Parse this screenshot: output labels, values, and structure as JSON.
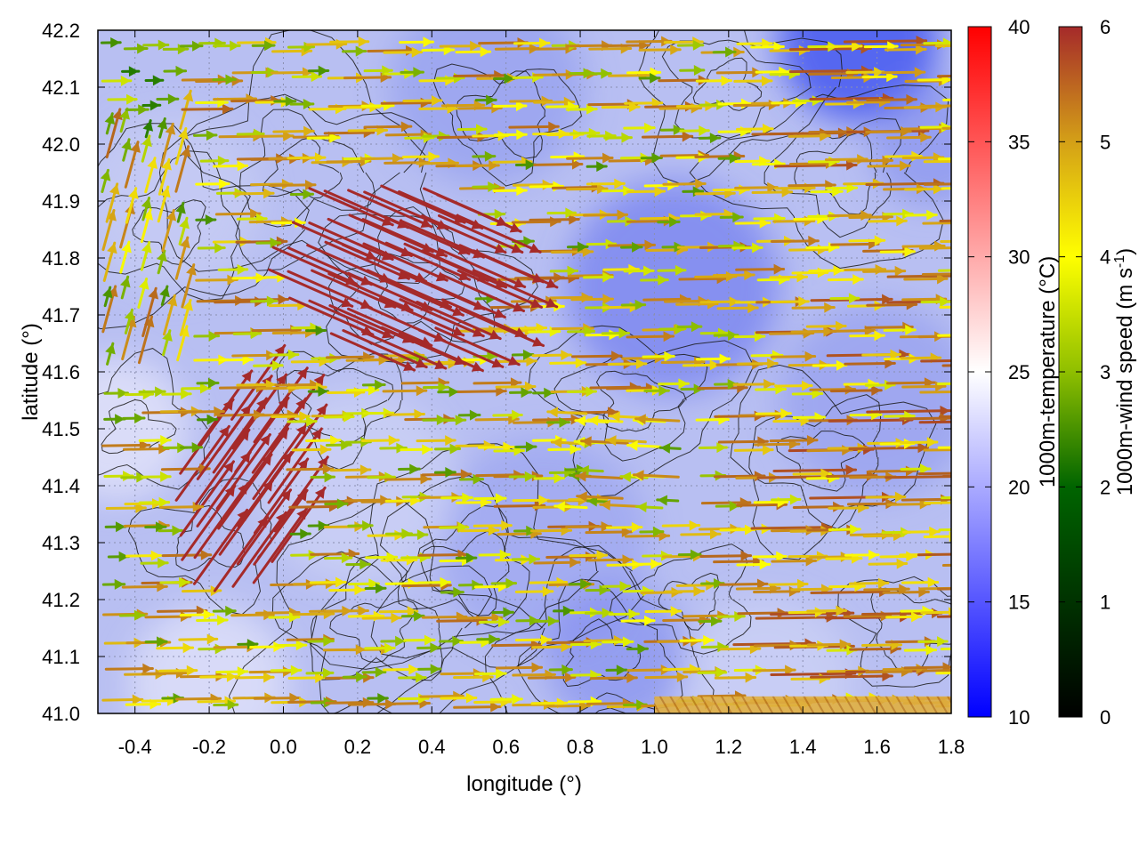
{
  "chart_data": {
    "type": "heatmap",
    "description_overlays": [
      "contour",
      "vector-field"
    ],
    "xlabel": "longitude (°)",
    "ylabel": "latitude (°)",
    "xlim": [
      -0.5,
      1.8
    ],
    "ylim": [
      41.0,
      42.2
    ],
    "x_ticks": [
      -0.4,
      -0.2,
      0.0,
      0.2,
      0.4,
      0.6,
      0.8,
      1.0,
      1.2,
      1.4,
      1.6,
      1.8
    ],
    "x_tick_labels": [
      "-0.4",
      "-0.2",
      "0.0",
      "0.2",
      "0.4",
      "0.6",
      "0.8",
      "1.0",
      "1.2",
      "1.4",
      "1.6",
      "1.8"
    ],
    "y_ticks": [
      41.0,
      41.1,
      41.2,
      41.3,
      41.4,
      41.5,
      41.6,
      41.7,
      41.8,
      41.9,
      42.0,
      42.1,
      42.2
    ],
    "y_tick_labels": [
      "41.0",
      "41.1",
      "41.2",
      "41.3",
      "41.4",
      "41.5",
      "41.6",
      "41.7",
      "41.8",
      "41.9",
      "42.0",
      "42.1",
      "42.2"
    ],
    "grid": true,
    "temperature_colorbar": {
      "label": "1000m-temperature (°C)",
      "range": [
        10,
        40
      ],
      "ticks": [
        10,
        15,
        20,
        25,
        30,
        35,
        40
      ],
      "tick_labels": [
        "10",
        "15",
        "20",
        "25",
        "30",
        "35",
        "40"
      ],
      "colors": [
        "#0000ff",
        "#ffffff",
        "#ff0000"
      ]
    },
    "wind_colorbar": {
      "label_main": "1000m-wind speed (m s",
      "label_sup": "-1",
      "label_end": ")",
      "range": [
        0,
        6
      ],
      "ticks": [
        0,
        1,
        2,
        3,
        4,
        5,
        6
      ],
      "tick_labels": [
        "0",
        "1",
        "2",
        "3",
        "4",
        "5",
        "6"
      ],
      "colors": [
        "#000000",
        "#006400",
        "#8fbf00",
        "#ffff00",
        "#d4a017",
        "#b5651d",
        "#a52a2a"
      ]
    },
    "temperature_field": {
      "typical_range": [
        15,
        22
      ],
      "coldest_regions": [
        "north-east corner near 1.5,42.2",
        "east around 0.9-1.1,41.6-41.8"
      ],
      "warmest_regions": [
        "west edge near -0.5",
        "south edge near 41.0"
      ]
    },
    "wind_field": {
      "sample_vectors": [
        {
          "lon": 0.1,
          "lat": 41.9,
          "speed": 6.0,
          "direction": "south-east"
        },
        {
          "lon": 0.4,
          "lat": 41.7,
          "speed": 6.0,
          "direction": "south-east"
        },
        {
          "lon": -0.2,
          "lat": 41.35,
          "speed": 6.0,
          "direction": "north-east"
        },
        {
          "lon": -0.1,
          "lat": 41.45,
          "speed": 6.0,
          "direction": "north-east"
        },
        {
          "lon": 0.3,
          "lat": 41.45,
          "speed": 5.5,
          "direction": "east"
        },
        {
          "lon": 1.3,
          "lat": 42.1,
          "speed": 5.0,
          "direction": "east"
        },
        {
          "lon": 1.4,
          "lat": 41.9,
          "speed": 5.0,
          "direction": "east"
        },
        {
          "lon": 1.5,
          "lat": 41.25,
          "speed": 5.0,
          "direction": "east"
        },
        {
          "lon": 1.6,
          "lat": 41.03,
          "speed": 5.0,
          "direction": "east"
        },
        {
          "lon": 0.8,
          "lat": 41.15,
          "speed": 4.0,
          "direction": "east"
        },
        {
          "lon": 1.2,
          "lat": 41.35,
          "speed": 4.0,
          "direction": "east"
        },
        {
          "lon": 0.5,
          "lat": 41.9,
          "speed": 4.0,
          "direction": "east"
        },
        {
          "lon": -0.3,
          "lat": 41.8,
          "speed": 4.0,
          "direction": "north"
        },
        {
          "lon": 0.9,
          "lat": 41.45,
          "speed": 2.0,
          "direction": "west"
        },
        {
          "lon": -0.4,
          "lat": 42.1,
          "speed": 2.0,
          "direction": "north-east"
        },
        {
          "lon": 1.2,
          "lat": 41.7,
          "speed": 3.0,
          "direction": "east"
        },
        {
          "lon": 0.0,
          "lat": 41.02,
          "speed": 2.0,
          "direction": "east"
        }
      ]
    },
    "contour_levels": "black isolines of terrain height"
  }
}
